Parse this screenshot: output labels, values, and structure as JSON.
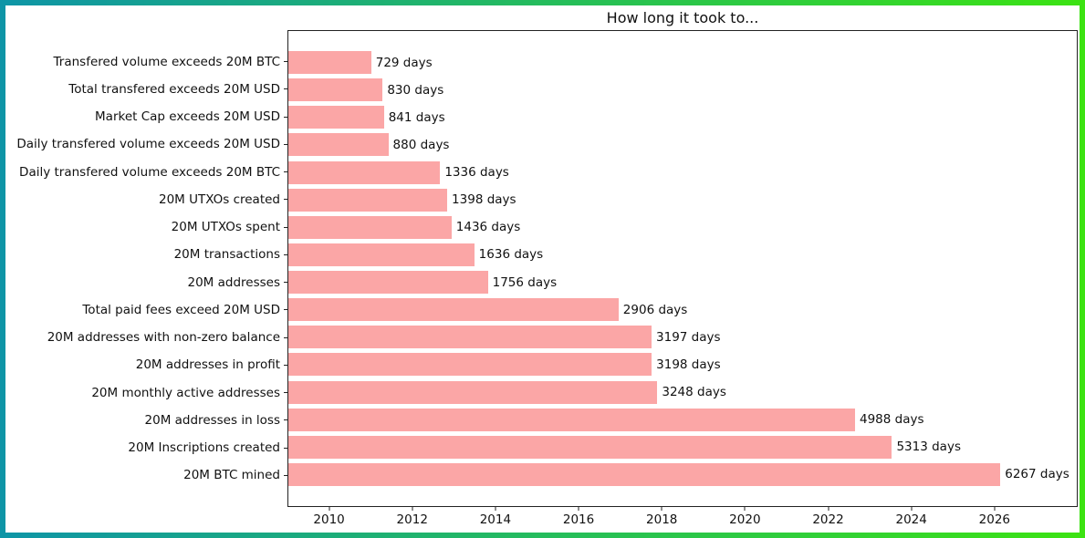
{
  "frame": {
    "border_gradient_left": "#0e95a7",
    "border_gradient_right": "#3ce312"
  },
  "chart_data": {
    "type": "bar",
    "orientation": "horizontal",
    "title": "How long it took to...",
    "bar_color": "#fba6a6",
    "background_color": "#ffffff",
    "grid": false,
    "legend": null,
    "days_per_year": 365.25,
    "x_axis": {
      "unit": "year",
      "min": 2009,
      "max": 2028,
      "ticks": [
        2010,
        2012,
        2014,
        2016,
        2018,
        2020,
        2022,
        2024,
        2026
      ]
    },
    "bars": [
      {
        "category": "Transfered volume exceeds 20M BTC",
        "days": 729,
        "label": "729 days"
      },
      {
        "category": "Total transfered exceeds 20M USD",
        "days": 830,
        "label": "830 days"
      },
      {
        "category": "Market Cap exceeds 20M USD",
        "days": 841,
        "label": "841 days"
      },
      {
        "category": "Daily transfered volume exceeds 20M USD",
        "days": 880,
        "label": "880 days"
      },
      {
        "category": "Daily transfered volume exceeds 20M BTC",
        "days": 1336,
        "label": "1336 days"
      },
      {
        "category": "20M UTXOs created",
        "days": 1398,
        "label": "1398 days"
      },
      {
        "category": "20M UTXOs spent",
        "days": 1436,
        "label": "1436 days"
      },
      {
        "category": "20M transactions",
        "days": 1636,
        "label": "1636 days"
      },
      {
        "category": "20M addresses",
        "days": 1756,
        "label": "1756 days"
      },
      {
        "category": "Total paid fees exceed 20M USD",
        "days": 2906,
        "label": "2906 days"
      },
      {
        "category": "20M addresses with non-zero balance",
        "days": 3197,
        "label": "3197 days"
      },
      {
        "category": "20M addresses in profit",
        "days": 3198,
        "label": "3198 days"
      },
      {
        "category": "20M monthly active addresses",
        "days": 3248,
        "label": "3248 days"
      },
      {
        "category": "20M addresses in loss",
        "days": 4988,
        "label": "4988 days"
      },
      {
        "category": "20M Inscriptions created",
        "days": 5313,
        "label": "5313 days"
      },
      {
        "category": "20M BTC mined",
        "days": 6267,
        "label": "6267 days"
      }
    ]
  }
}
